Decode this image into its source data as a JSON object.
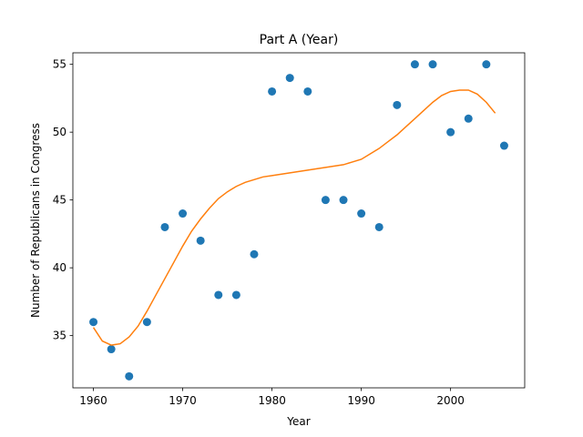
{
  "chart_data": {
    "type": "scatter",
    "title": "Part A (Year)",
    "xlabel": "Year",
    "ylabel": "Number of Republicans in Congress",
    "xlim": [
      1957.7,
      2008.3
    ],
    "ylim": [
      31.15,
      55.85
    ],
    "xticks": [
      1960,
      1970,
      1980,
      1990,
      2000
    ],
    "yticks": [
      35,
      40,
      45,
      50,
      55
    ],
    "grid": false,
    "colors": {
      "points": "#1f77b4",
      "curve": "#ff7f0e"
    },
    "series": [
      {
        "type": "scatter",
        "x": [
          1960,
          1962,
          1964,
          1966,
          1968,
          1970,
          1972,
          1974,
          1976,
          1978,
          1980,
          1982,
          1984,
          1986,
          1988,
          1990,
          1992,
          1994,
          1996,
          1998,
          2000,
          2002,
          2004,
          2006
        ],
        "y": [
          36,
          34,
          32,
          36,
          43,
          44,
          42,
          38,
          38,
          41,
          53,
          54,
          53,
          45,
          45,
          44,
          43,
          52,
          55,
          55,
          50,
          51,
          55,
          49
        ]
      },
      {
        "type": "line",
        "x": [
          1960,
          1961,
          1962,
          1963,
          1964,
          1965,
          1966,
          1967,
          1968,
          1969,
          1970,
          1971,
          1972,
          1973,
          1974,
          1975,
          1976,
          1977,
          1978,
          1979,
          1980,
          1981,
          1982,
          1983,
          1984,
          1985,
          1986,
          1987,
          1988,
          1989,
          1990,
          1991,
          1992,
          1993,
          1994,
          1995,
          1996,
          1997,
          1998,
          1999,
          2000,
          2001,
          2002,
          2003,
          2004,
          2005
        ],
        "y": [
          35.6,
          34.6,
          34.3,
          34.4,
          34.9,
          35.7,
          36.8,
          38.0,
          39.2,
          40.4,
          41.6,
          42.7,
          43.6,
          44.4,
          45.1,
          45.6,
          46.0,
          46.3,
          46.5,
          46.7,
          46.8,
          46.9,
          47.0,
          47.1,
          47.2,
          47.3,
          47.4,
          47.5,
          47.6,
          47.8,
          48.0,
          48.4,
          48.8,
          49.3,
          49.8,
          50.4,
          51.0,
          51.6,
          52.2,
          52.7,
          53.0,
          53.1,
          53.1,
          52.8,
          52.2,
          51.4
        ]
      }
    ]
  }
}
